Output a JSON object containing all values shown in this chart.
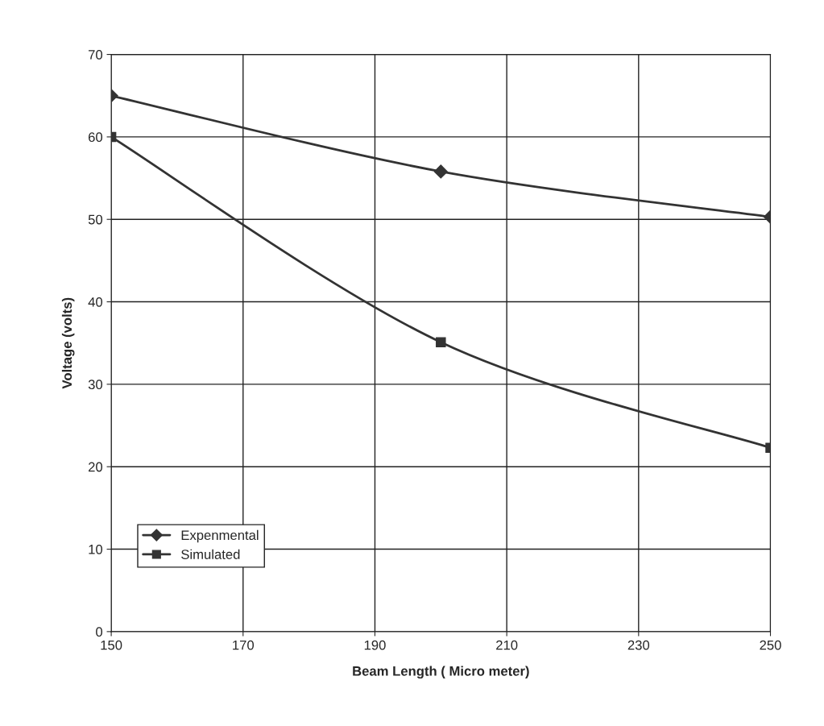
{
  "chart_data": {
    "type": "line",
    "xlabel": "Beam Length ( Micro meter)",
    "ylabel": "Voltage (volts)",
    "x": [
      150,
      200,
      250
    ],
    "series": [
      {
        "name": "Expenmental",
        "color": "#333333",
        "values": [
          65,
          55.8,
          50.3
        ],
        "marker": "diamond"
      },
      {
        "name": "Simulated",
        "color": "#333333",
        "values": [
          60,
          35.1,
          22.3
        ],
        "marker": "square"
      }
    ],
    "xlim": [
      150,
      250
    ],
    "xticks": [
      150,
      170,
      190,
      210,
      230,
      250
    ],
    "ylim": [
      0,
      70
    ],
    "yticks": [
      0,
      10,
      20,
      30,
      40,
      50,
      60,
      70
    ],
    "grid": true,
    "legend": "bottom left",
    "line_style": "solid"
  }
}
